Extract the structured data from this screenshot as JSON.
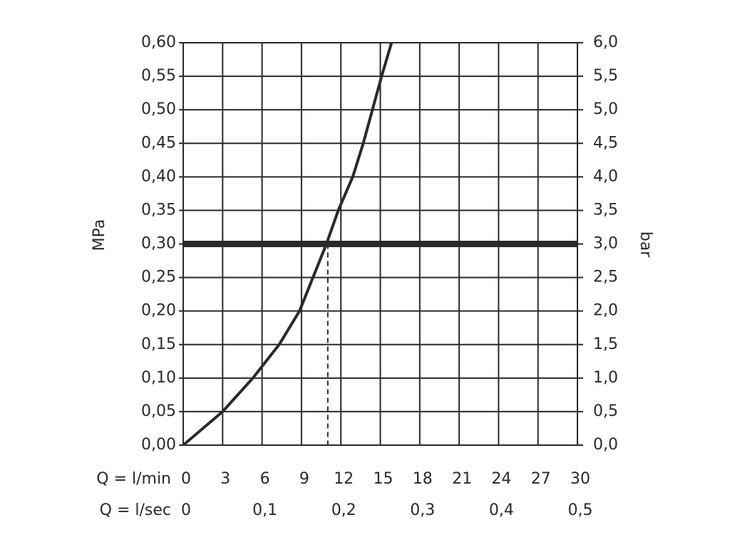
{
  "chart_data": {
    "type": "line",
    "y_label": "MPa",
    "y2_label": "bar",
    "x_row_label": "Q = l/min",
    "x2_row_label": "Q = l/sec",
    "x": [
      0,
      3,
      5.3,
      7.3,
      8.85,
      10.9,
      11.8,
      12.9,
      13.7,
      14.4,
      15.1,
      15.85
    ],
    "values": [
      0,
      0.05,
      0.1,
      0.15,
      0.2,
      0.3,
      0.35,
      0.4,
      0.45,
      0.5,
      0.55,
      0.6
    ],
    "color": "#2a2a2a",
    "reference_y": 0.3,
    "reference_x": 11,
    "xlim": [
      0,
      30
    ],
    "xticks": [
      0,
      3,
      6,
      9,
      12,
      15,
      18,
      21,
      24,
      27,
      30
    ],
    "x2lim": [
      0,
      0.5
    ],
    "x2ticks": [
      {
        "value": 0,
        "label": "0"
      },
      {
        "value": 0.1,
        "label": "0,1"
      },
      {
        "value": 0.2,
        "label": "0,2"
      },
      {
        "value": 0.3,
        "label": "0,3"
      },
      {
        "value": 0.4,
        "label": "0,4"
      },
      {
        "value": 0.5,
        "label": "0,5"
      }
    ],
    "ylim": [
      0,
      0.6
    ],
    "yticks": [
      {
        "value": 0,
        "label": "0,00"
      },
      {
        "value": 0.05,
        "label": "0,05"
      },
      {
        "value": 0.1,
        "label": "0,10"
      },
      {
        "value": 0.15,
        "label": "0,15"
      },
      {
        "value": 0.2,
        "label": "0,20"
      },
      {
        "value": 0.25,
        "label": "0,25"
      },
      {
        "value": 0.3,
        "label": "0,30"
      },
      {
        "value": 0.35,
        "label": "0,35"
      },
      {
        "value": 0.4,
        "label": "0,40"
      },
      {
        "value": 0.45,
        "label": "0,45"
      },
      {
        "value": 0.5,
        "label": "0,50"
      },
      {
        "value": 0.55,
        "label": "0,55"
      },
      {
        "value": 0.6,
        "label": "0,60"
      }
    ],
    "y2lim": [
      0,
      6
    ],
    "y2ticks": [
      {
        "value": 0,
        "label": "0,0"
      },
      {
        "value": 0.5,
        "label": "0,5"
      },
      {
        "value": 1,
        "label": "1,0"
      },
      {
        "value": 1.5,
        "label": "1,5"
      },
      {
        "value": 2,
        "label": "2,0"
      },
      {
        "value": 2.5,
        "label": "2,5"
      },
      {
        "value": 3,
        "label": "3,0"
      },
      {
        "value": 3.5,
        "label": "3,5"
      },
      {
        "value": 4,
        "label": "4,0"
      },
      {
        "value": 4.5,
        "label": "4,5"
      },
      {
        "value": 5,
        "label": "5,0"
      },
      {
        "value": 5.5,
        "label": "5,5"
      },
      {
        "value": 6,
        "label": "6,0"
      }
    ],
    "grid": true
  }
}
